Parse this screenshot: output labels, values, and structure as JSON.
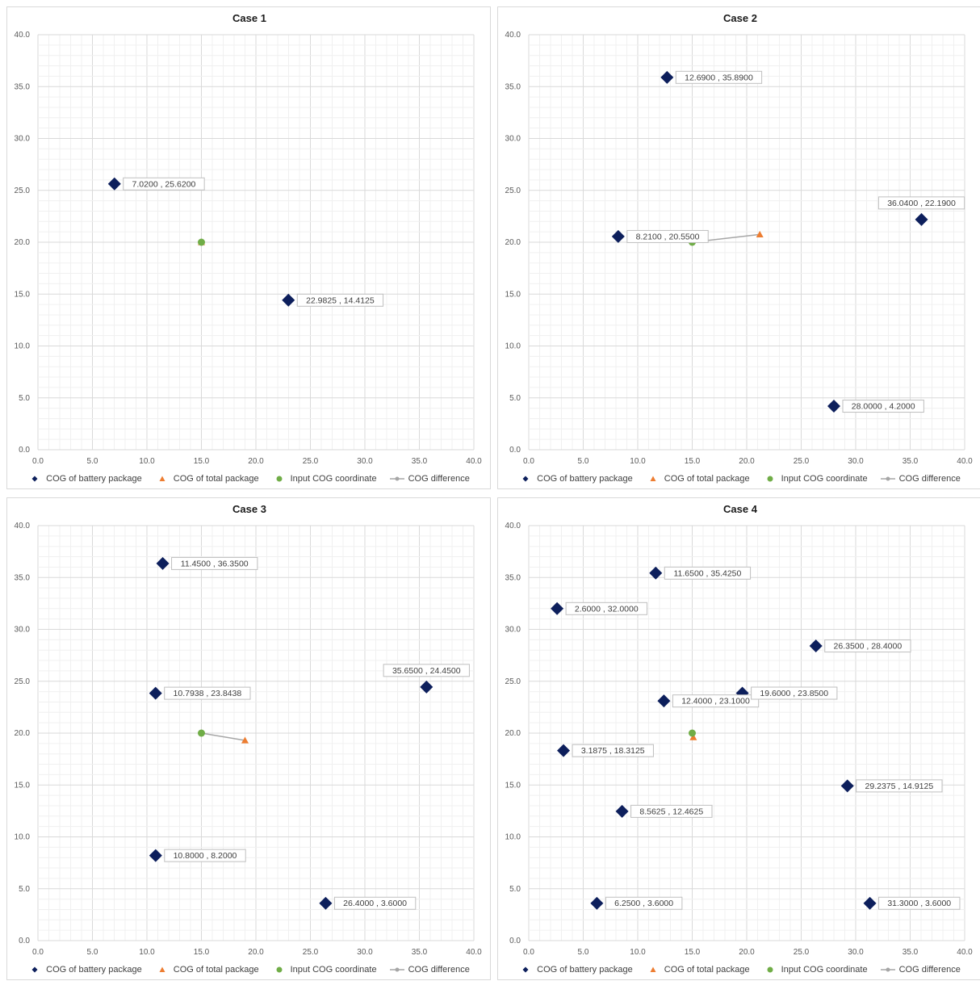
{
  "chart_data": [
    {
      "type": "scatter",
      "title": "Case 1",
      "xlim": [
        0,
        40
      ],
      "ylim": [
        0,
        40
      ],
      "x_ticks": [
        "0.0",
        "5.0",
        "10.0",
        "15.0",
        "20.0",
        "25.0",
        "30.0",
        "35.0",
        "40.0"
      ],
      "y_ticks": [
        "0.0",
        "5.0",
        "10.0",
        "15.0",
        "20.0",
        "25.0",
        "30.0",
        "35.0",
        "40.0"
      ],
      "grid": true,
      "legend_position": "bottom",
      "series": [
        {
          "name": "COG of battery package",
          "color": "#0d1f5c",
          "marker": "diamond",
          "points": [
            {
              "x": 7.02,
              "y": 25.62,
              "label": "7.0200 , 25.6200"
            },
            {
              "x": 22.9825,
              "y": 14.4125,
              "label": "22.9825 , 14.4125"
            }
          ]
        },
        {
          "name": "COG of total package",
          "color": "#ed7d31",
          "marker": "triangle",
          "points": [
            {
              "x": 15.0,
              "y": 20.0
            }
          ]
        },
        {
          "name": "Input COG coordinate",
          "color": "#70ad47",
          "marker": "circle",
          "points": [
            {
              "x": 15.0,
              "y": 20.0
            }
          ]
        },
        {
          "name": "COG difference",
          "color": "#a6a6a6",
          "marker": "line",
          "points": [
            {
              "x": 15.0,
              "y": 20.0
            },
            {
              "x": 15.0,
              "y": 20.0
            }
          ]
        }
      ]
    },
    {
      "type": "scatter",
      "title": "Case 2",
      "xlim": [
        0,
        40
      ],
      "ylim": [
        0,
        40
      ],
      "x_ticks": [
        "0.0",
        "5.0",
        "10.0",
        "15.0",
        "20.0",
        "25.0",
        "30.0",
        "35.0",
        "40.0"
      ],
      "y_ticks": [
        "0.0",
        "5.0",
        "10.0",
        "15.0",
        "20.0",
        "25.0",
        "30.0",
        "35.0",
        "40.0"
      ],
      "grid": true,
      "legend_position": "bottom",
      "series": [
        {
          "name": "COG of battery package",
          "color": "#0d1f5c",
          "marker": "diamond",
          "points": [
            {
              "x": 12.69,
              "y": 35.89,
              "label": "12.6900 , 35.8900"
            },
            {
              "x": 8.21,
              "y": 20.55,
              "label": "8.2100 , 20.5500"
            },
            {
              "x": 36.04,
              "y": 22.19,
              "label": "36.0400 , 22.1900"
            },
            {
              "x": 28.0,
              "y": 4.2,
              "label": "28.0000 , 4.2000"
            }
          ]
        },
        {
          "name": "COG of total package",
          "color": "#ed7d31",
          "marker": "triangle",
          "points": [
            {
              "x": 21.2,
              "y": 20.75
            }
          ]
        },
        {
          "name": "Input COG coordinate",
          "color": "#70ad47",
          "marker": "circle",
          "points": [
            {
              "x": 15.0,
              "y": 20.0
            }
          ]
        },
        {
          "name": "COG difference",
          "color": "#a6a6a6",
          "marker": "line",
          "points": [
            {
              "x": 15.0,
              "y": 20.0
            },
            {
              "x": 21.2,
              "y": 20.75
            }
          ]
        }
      ]
    },
    {
      "type": "scatter",
      "title": "Case 3",
      "xlim": [
        0,
        40
      ],
      "ylim": [
        0,
        40
      ],
      "x_ticks": [
        "0.0",
        "5.0",
        "10.0",
        "15.0",
        "20.0",
        "25.0",
        "30.0",
        "35.0",
        "40.0"
      ],
      "y_ticks": [
        "0.0",
        "5.0",
        "10.0",
        "15.0",
        "20.0",
        "25.0",
        "30.0",
        "35.0",
        "40.0"
      ],
      "grid": true,
      "legend_position": "bottom",
      "series": [
        {
          "name": "COG of battery package",
          "color": "#0d1f5c",
          "marker": "diamond",
          "points": [
            {
              "x": 11.45,
              "y": 36.35,
              "label": "11.4500 , 36.3500"
            },
            {
              "x": 10.7938,
              "y": 23.8438,
              "label": "10.7938 , 23.8438"
            },
            {
              "x": 35.65,
              "y": 24.45,
              "label": "35.6500 , 24.4500"
            },
            {
              "x": 10.8,
              "y": 8.2,
              "label": "10.8000 , 8.2000"
            },
            {
              "x": 26.4,
              "y": 3.6,
              "label": "26.4000 , 3.6000"
            }
          ]
        },
        {
          "name": "COG of total package",
          "color": "#ed7d31",
          "marker": "triangle",
          "points": [
            {
              "x": 19.0,
              "y": 19.3
            }
          ]
        },
        {
          "name": "Input COG coordinate",
          "color": "#70ad47",
          "marker": "circle",
          "points": [
            {
              "x": 15.0,
              "y": 20.0
            }
          ]
        },
        {
          "name": "COG difference",
          "color": "#a6a6a6",
          "marker": "line",
          "points": [
            {
              "x": 15.0,
              "y": 20.0
            },
            {
              "x": 19.0,
              "y": 19.3
            }
          ]
        }
      ]
    },
    {
      "type": "scatter",
      "title": "Case 4",
      "xlim": [
        0,
        40
      ],
      "ylim": [
        0,
        40
      ],
      "x_ticks": [
        "0.0",
        "5.0",
        "10.0",
        "15.0",
        "20.0",
        "25.0",
        "30.0",
        "35.0",
        "40.0"
      ],
      "y_ticks": [
        "0.0",
        "5.0",
        "10.0",
        "15.0",
        "20.0",
        "25.0",
        "30.0",
        "35.0",
        "40.0"
      ],
      "grid": true,
      "legend_position": "bottom",
      "series": [
        {
          "name": "COG of battery package",
          "color": "#0d1f5c",
          "marker": "diamond",
          "points": [
            {
              "x": 11.65,
              "y": 35.425,
              "label": "11.6500 , 35.4250"
            },
            {
              "x": 2.6,
              "y": 32.0,
              "label": "2.6000 , 32.0000"
            },
            {
              "x": 26.35,
              "y": 28.4,
              "label": "26.3500 , 28.4000"
            },
            {
              "x": 12.4,
              "y": 23.1,
              "label": "12.4000 , 23.1000"
            },
            {
              "x": 19.6,
              "y": 23.85,
              "label": "19.6000 , 23.8500"
            },
            {
              "x": 3.1875,
              "y": 18.3125,
              "label": "3.1875 , 18.3125"
            },
            {
              "x": 29.2375,
              "y": 14.9125,
              "label": "29.2375 , 14.9125"
            },
            {
              "x": 8.5625,
              "y": 12.4625,
              "label": "8.5625 , 12.4625"
            },
            {
              "x": 6.25,
              "y": 3.6,
              "label": "6.2500 , 3.6000"
            },
            {
              "x": 31.3,
              "y": 3.6,
              "label": "31.3000 , 3.6000"
            }
          ]
        },
        {
          "name": "COG of total package",
          "color": "#ed7d31",
          "marker": "triangle",
          "points": [
            {
              "x": 15.1,
              "y": 19.6
            }
          ]
        },
        {
          "name": "Input COG coordinate",
          "color": "#70ad47",
          "marker": "circle",
          "points": [
            {
              "x": 15.0,
              "y": 20.0
            }
          ]
        },
        {
          "name": "COG difference",
          "color": "#a6a6a6",
          "marker": "line",
          "points": [
            {
              "x": 15.0,
              "y": 20.0
            },
            {
              "x": 15.1,
              "y": 19.6
            }
          ]
        }
      ]
    }
  ]
}
